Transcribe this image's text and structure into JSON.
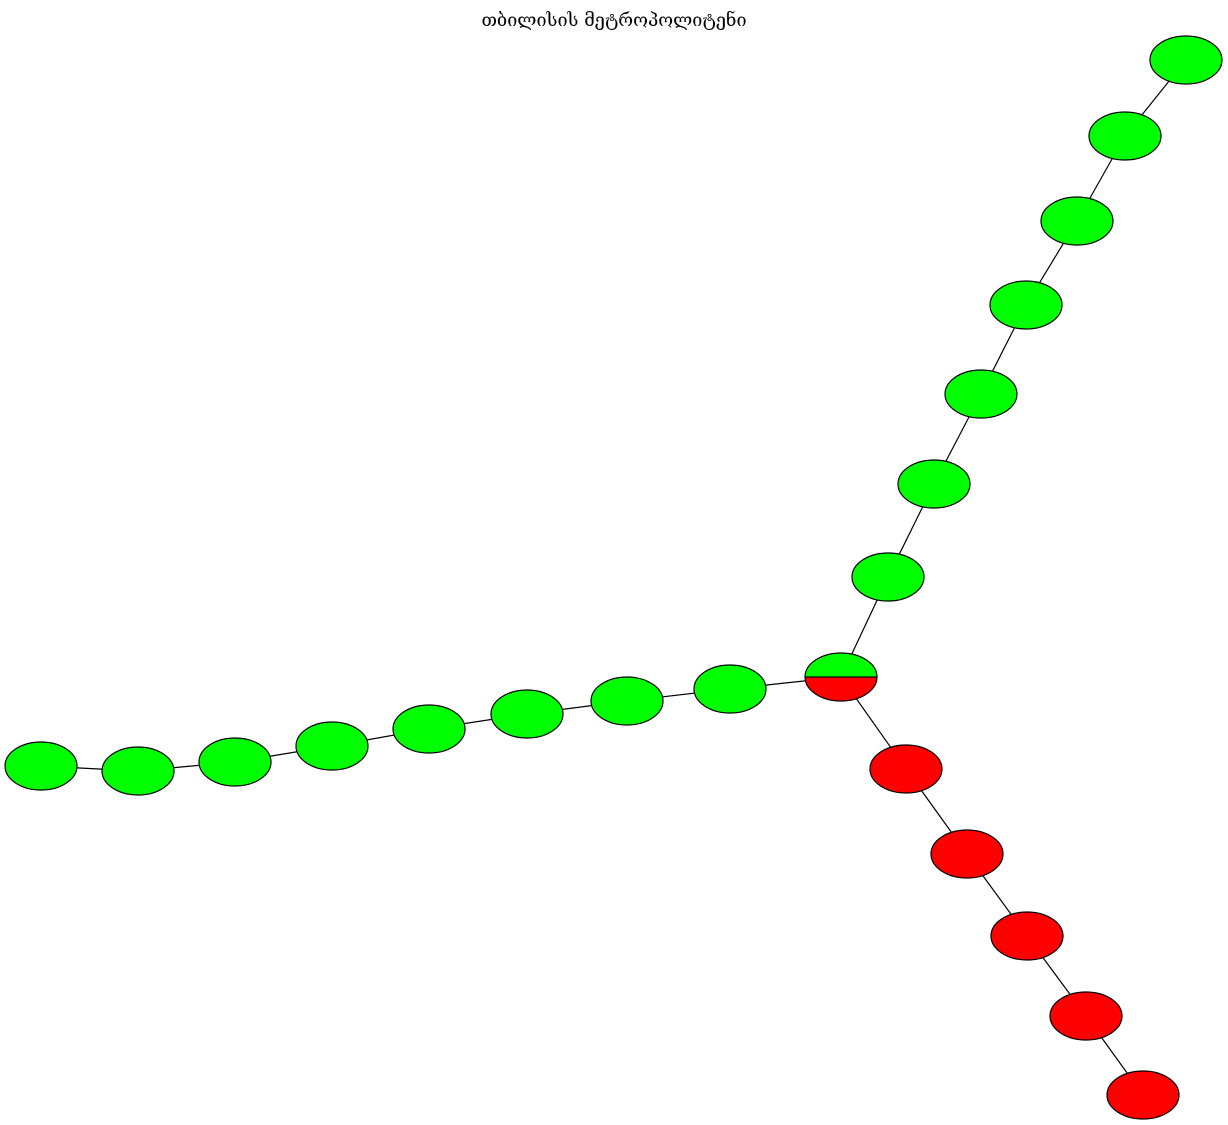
{
  "title": "თბილისის მეტროპოლიტენი",
  "colors": {
    "green_line": "#00ff00",
    "red_line": "#ff0000",
    "edge": "#000000",
    "outline": "#000000"
  },
  "lines": [
    {
      "name": "",
      "color": "#00ff00",
      "stations": 8,
      "role": "northeast-branch"
    },
    {
      "name": "",
      "color": "#00ff00",
      "stations": 8,
      "role": "west-branch"
    },
    {
      "name": "",
      "color": "#ff0000",
      "stations": 5,
      "role": "southeast-branch"
    }
  ],
  "interchange": {
    "colors": [
      "#00ff00",
      "#ff0000"
    ],
    "stations": 1
  }
}
